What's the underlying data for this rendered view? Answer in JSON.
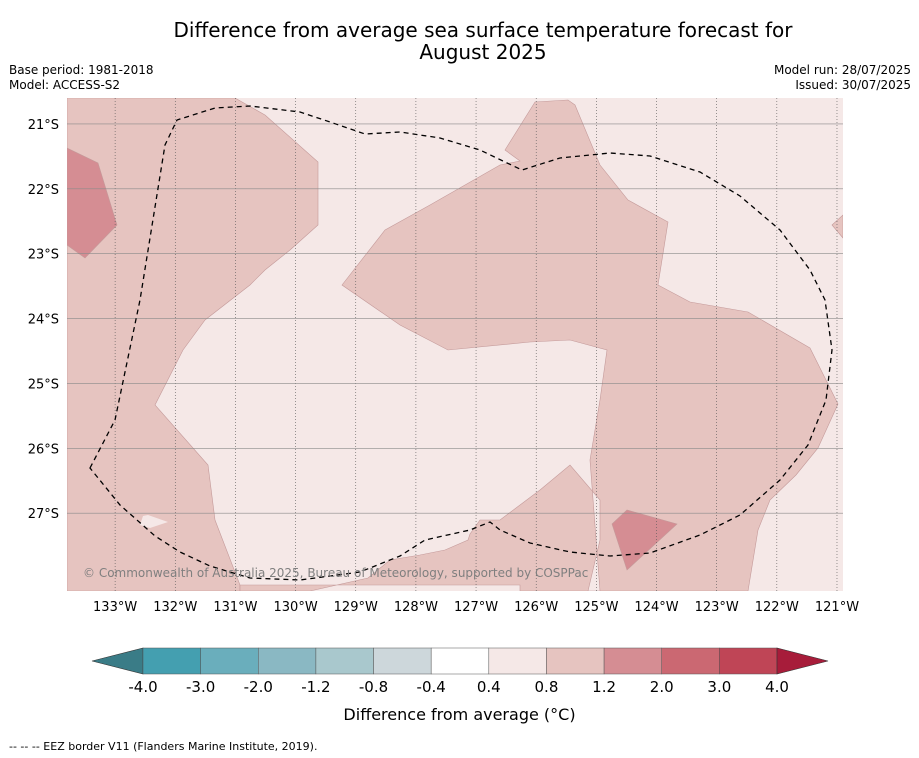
{
  "title_line1": "Difference from average sea surface temperature forecast for",
  "title_line2": "August 2025",
  "meta": {
    "base_period": "Base period: 1981-2018",
    "model": "Model: ACCESS-S2",
    "model_run": "Model run: 28/07/2025",
    "issued": "Issued: 30/07/2025"
  },
  "copyright": "© Commonwealth of Australia 2025, Bureau of Meteorology, supported by COSPPac",
  "footer": "-- -- -- EEZ border V11 (Flanders Marine Institute, 2019).",
  "chart_data": {
    "type": "heatmap",
    "title": "Difference from average sea surface temperature forecast for August 2025",
    "x_ticks": [
      "133°W",
      "132°W",
      "131°W",
      "130°W",
      "129°W",
      "128°W",
      "127°W",
      "126°W",
      "125°W",
      "124°W",
      "123°W",
      "122°W",
      "121°W"
    ],
    "x_tick_values": [
      -133,
      -132,
      -131,
      -130,
      -129,
      -128,
      -127,
      -126,
      -125,
      -124,
      -123,
      -122,
      -121
    ],
    "y_ticks": [
      "21°S",
      "22°S",
      "23°S",
      "24°S",
      "25°S",
      "26°S",
      "27°S"
    ],
    "y_tick_values": [
      -21,
      -22,
      -23,
      -24,
      -25,
      -26,
      -27
    ],
    "xlim": [
      -133.8,
      -120.9
    ],
    "ylim": [
      -28.2,
      -20.6
    ],
    "grid": true,
    "colorbar": {
      "label": "Difference from average (°C)",
      "tick_labels": [
        "-4.0",
        "-3.0",
        "-2.0",
        "-1.2",
        "-0.8",
        "-0.4",
        "0.4",
        "0.8",
        "1.2",
        "2.0",
        "3.0",
        "4.0"
      ],
      "boundaries": [
        -4.0,
        -3.0,
        -2.0,
        -1.2,
        -0.8,
        -0.4,
        0.4,
        0.8,
        1.2,
        2.0,
        3.0,
        4.0
      ],
      "colors": [
        "#449fb0",
        "#6aaebc",
        "#8ab8c3",
        "#a9c8cd",
        "#cdd7db",
        "#ffffff",
        "#f5e8e7",
        "#e6c4c0",
        "#d58d93",
        "#cb6872",
        "#bf4556"
      ],
      "under_color": "#3a7c87",
      "over_color": "#a71c3a"
    },
    "field": [
      {
        "category": "0.4 to 0.8",
        "color": "#f5e8e7",
        "region": "background"
      },
      {
        "category": "0.8 to 1.2",
        "color": "#e6c4c0",
        "region": "north-west"
      },
      {
        "category": "0.8 to 1.2",
        "color": "#e6c4c0",
        "region": "north-centre to south-east"
      },
      {
        "category": "0.8 to 1.2",
        "color": "#e6c4c0",
        "region": "far east"
      },
      {
        "category": "1.2 to 2.0",
        "color": "#d58d93",
        "region": "west edge"
      },
      {
        "category": "1.2 to 2.0",
        "color": "#d58d93",
        "region": "south-east patch"
      },
      {
        "category": "1.2 to 2.0",
        "color": "#d58d93",
        "region": "east edge"
      }
    ],
    "eez_border": "dashed black line"
  }
}
